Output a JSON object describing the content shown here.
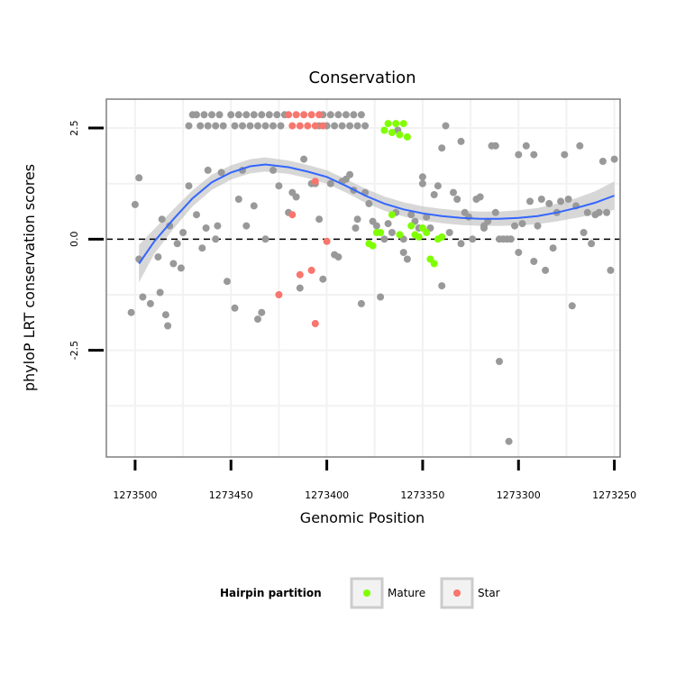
{
  "chart_data": {
    "type": "scatter",
    "title": "Conservation",
    "xlabel": "Genomic Position",
    "ylabel": "phyloP LRT conservation scores",
    "xlim": [
      1273515,
      1273247
    ],
    "ylim": [
      -4.9,
      3.15
    ],
    "x_reversed": true,
    "x_ticks": [
      1273500,
      1273450,
      1273400,
      1273350,
      1273300,
      1273250
    ],
    "x_tick_labels": [
      "1273500",
      "1273450",
      "1273400",
      "1273350",
      "1273300",
      "1273250"
    ],
    "y_ticks": [
      -2.5,
      0.0,
      2.5
    ],
    "y_tick_labels": [
      "-2.5",
      "0.0",
      "2.5"
    ],
    "minor_y": [
      -3.75,
      -1.25,
      1.25
    ],
    "minor_x": [
      1273475,
      1273425,
      1273375,
      1273325,
      1273275
    ],
    "reference_line": {
      "y": 0,
      "style": "dashed",
      "color": "#000000"
    },
    "colors": {
      "none": "#999999",
      "Mature": "#7fff00",
      "Star": "#f8766d",
      "smooth": "#3366ff",
      "ribbon": "#bdbdbd",
      "panel_border": "#7f7f7f",
      "grid": "#f2f2f2"
    },
    "legend": {
      "title": "Hairpin partition",
      "position": "bottom",
      "entries": [
        {
          "label": "Mature",
          "color": "#7fff00"
        },
        {
          "label": "Star",
          "color": "#f8766d"
        }
      ]
    },
    "series": [
      {
        "name": "none",
        "points": [
          [
            1273498,
            1.38
          ],
          [
            1273500,
            0.78
          ],
          [
            1273496,
            -1.3
          ],
          [
            1273498,
            -0.45
          ],
          [
            1273492,
            -1.45
          ],
          [
            1273502,
            -1.65
          ],
          [
            1273488,
            -0.4
          ],
          [
            1273486,
            0.45
          ],
          [
            1273487,
            -1.2
          ],
          [
            1273484,
            -1.7
          ],
          [
            1273483,
            -1.95
          ],
          [
            1273482,
            0.3
          ],
          [
            1273480,
            -0.55
          ],
          [
            1273478,
            -0.1
          ],
          [
            1273476,
            -0.65
          ],
          [
            1273475,
            0.15
          ],
          [
            1273472,
            1.2
          ],
          [
            1273468,
            0.55
          ],
          [
            1273465,
            -0.2
          ],
          [
            1273463,
            0.25
          ],
          [
            1273462,
            1.55
          ],
          [
            1273458,
            0.0
          ],
          [
            1273457,
            0.3
          ],
          [
            1273455,
            1.5
          ],
          [
            1273452,
            -0.95
          ],
          [
            1273448,
            -1.55
          ],
          [
            1273446,
            0.9
          ],
          [
            1273444,
            1.55
          ],
          [
            1273442,
            0.3
          ],
          [
            1273438,
            0.75
          ],
          [
            1273436,
            -1.8
          ],
          [
            1273434,
            -1.65
          ],
          [
            1273432,
            0.0
          ],
          [
            1273428,
            1.55
          ],
          [
            1273425,
            1.2
          ],
          [
            1273420,
            0.6
          ],
          [
            1273418,
            1.05
          ],
          [
            1273416,
            0.95
          ],
          [
            1273414,
            -1.1
          ],
          [
            1273412,
            1.8
          ],
          [
            1273408,
            1.25
          ],
          [
            1273406,
            1.25
          ],
          [
            1273404,
            0.45
          ],
          [
            1273402,
            -0.9
          ],
          [
            1273398,
            1.25
          ],
          [
            1273396,
            -0.35
          ],
          [
            1273394,
            -0.4
          ],
          [
            1273392,
            1.3
          ],
          [
            1273390,
            1.35
          ],
          [
            1273388,
            1.45
          ],
          [
            1273386,
            1.1
          ],
          [
            1273385,
            0.25
          ],
          [
            1273384,
            0.45
          ],
          [
            1273382,
            -1.45
          ],
          [
            1273380,
            1.05
          ],
          [
            1273378,
            0.8
          ],
          [
            1273376,
            0.4
          ],
          [
            1273374,
            0.3
          ],
          [
            1273372,
            -1.3
          ],
          [
            1273370,
            0.0
          ],
          [
            1273368,
            0.35
          ],
          [
            1273366,
            0.15
          ],
          [
            1273364,
            0.6
          ],
          [
            1273363,
            2.45
          ],
          [
            1273360,
            0.0
          ],
          [
            1273358,
            -0.45
          ],
          [
            1273356,
            0.55
          ],
          [
            1273354,
            0.4
          ],
          [
            1273352,
            0.25
          ],
          [
            1273350,
            1.25
          ],
          [
            1273348,
            0.5
          ],
          [
            1273346,
            0.25
          ],
          [
            1273344,
            1.0
          ],
          [
            1273342,
            1.2
          ],
          [
            1273340,
            -1.05
          ],
          [
            1273338,
            2.55
          ],
          [
            1273336,
            0.15
          ],
          [
            1273334,
            1.05
          ],
          [
            1273332,
            0.9
          ],
          [
            1273330,
            2.2
          ],
          [
            1273328,
            0.6
          ],
          [
            1273326,
            0.5
          ],
          [
            1273324,
            0.0
          ],
          [
            1273322,
            0.9
          ],
          [
            1273320,
            0.95
          ],
          [
            1273318,
            0.25
          ],
          [
            1273316,
            0.4
          ],
          [
            1273314,
            2.1
          ],
          [
            1273312,
            2.1
          ],
          [
            1273310,
            0.0
          ],
          [
            1273308,
            0.0
          ],
          [
            1273306,
            0.0
          ],
          [
            1273304,
            0.0
          ],
          [
            1273302,
            0.3
          ],
          [
            1273300,
            -0.3
          ],
          [
            1273298,
            0.35
          ],
          [
            1273296,
            2.1
          ],
          [
            1273294,
            0.85
          ],
          [
            1273292,
            -0.5
          ],
          [
            1273290,
            0.3
          ],
          [
            1273288,
            0.9
          ],
          [
            1273286,
            -0.7
          ],
          [
            1273284,
            0.8
          ],
          [
            1273282,
            -0.2
          ],
          [
            1273280,
            0.6
          ],
          [
            1273278,
            0.85
          ],
          [
            1273276,
            1.9
          ],
          [
            1273274,
            0.9
          ],
          [
            1273272,
            -1.5
          ],
          [
            1273270,
            0.75
          ],
          [
            1273268,
            2.1
          ],
          [
            1273266,
            0.15
          ],
          [
            1273264,
            0.6
          ],
          [
            1273262,
            -0.1
          ],
          [
            1273260,
            0.55
          ],
          [
            1273258,
            0.6
          ],
          [
            1273256,
            1.75
          ],
          [
            1273254,
            0.6
          ],
          [
            1273252,
            -0.7
          ],
          [
            1273250,
            1.8
          ],
          [
            1273310,
            -2.75
          ],
          [
            1273305,
            -4.55
          ],
          [
            1273318,
            0.3
          ],
          [
            1273300,
            1.9
          ],
          [
            1273292,
            1.9
          ],
          [
            1273340,
            2.05
          ],
          [
            1273350,
            1.4
          ],
          [
            1273360,
            -0.3
          ],
          [
            1273330,
            -0.1
          ],
          [
            1273312,
            0.6
          ],
          [
            1273470,
            2.8
          ],
          [
            1273472,
            2.55
          ],
          [
            1273468,
            2.8
          ],
          [
            1273466,
            2.55
          ],
          [
            1273464,
            2.8
          ],
          [
            1273462,
            2.55
          ],
          [
            1273460,
            2.8
          ],
          [
            1273458,
            2.55
          ],
          [
            1273456,
            2.8
          ],
          [
            1273454,
            2.55
          ],
          [
            1273450,
            2.8
          ],
          [
            1273448,
            2.55
          ],
          [
            1273446,
            2.8
          ],
          [
            1273444,
            2.55
          ],
          [
            1273442,
            2.8
          ],
          [
            1273440,
            2.55
          ],
          [
            1273438,
            2.8
          ],
          [
            1273436,
            2.55
          ],
          [
            1273434,
            2.8
          ],
          [
            1273432,
            2.55
          ],
          [
            1273430,
            2.8
          ],
          [
            1273428,
            2.55
          ],
          [
            1273426,
            2.8
          ],
          [
            1273424,
            2.55
          ],
          [
            1273422,
            2.8
          ],
          [
            1273404,
            2.55
          ],
          [
            1273402,
            2.8
          ],
          [
            1273400,
            2.55
          ],
          [
            1273398,
            2.8
          ],
          [
            1273396,
            2.55
          ],
          [
            1273394,
            2.8
          ],
          [
            1273392,
            2.55
          ],
          [
            1273390,
            2.8
          ],
          [
            1273388,
            2.55
          ],
          [
            1273386,
            2.8
          ],
          [
            1273384,
            2.55
          ],
          [
            1273382,
            2.8
          ],
          [
            1273380,
            2.55
          ]
        ]
      },
      {
        "name": "Mature",
        "points": [
          [
            1273370,
            2.45
          ],
          [
            1273368,
            2.6
          ],
          [
            1273366,
            2.4
          ],
          [
            1273364,
            2.6
          ],
          [
            1273362,
            2.35
          ],
          [
            1273360,
            2.6
          ],
          [
            1273358,
            2.3
          ],
          [
            1273356,
            0.3
          ],
          [
            1273354,
            0.1
          ],
          [
            1273352,
            0.05
          ],
          [
            1273350,
            0.25
          ],
          [
            1273348,
            0.15
          ],
          [
            1273346,
            -0.45
          ],
          [
            1273344,
            -0.55
          ],
          [
            1273342,
            0.0
          ],
          [
            1273340,
            0.05
          ],
          [
            1273372,
            0.15
          ],
          [
            1273374,
            0.15
          ],
          [
            1273376,
            -0.15
          ],
          [
            1273378,
            -0.1
          ],
          [
            1273366,
            0.55
          ],
          [
            1273362,
            0.1
          ]
        ]
      },
      {
        "name": "Star",
        "points": [
          [
            1273420,
            2.8
          ],
          [
            1273418,
            2.55
          ],
          [
            1273416,
            2.8
          ],
          [
            1273414,
            2.55
          ],
          [
            1273412,
            2.8
          ],
          [
            1273410,
            2.55
          ],
          [
            1273408,
            2.8
          ],
          [
            1273406,
            2.55
          ],
          [
            1273404,
            2.8
          ],
          [
            1273402,
            2.55
          ],
          [
            1273425,
            -1.25
          ],
          [
            1273418,
            0.55
          ],
          [
            1273414,
            -0.8
          ],
          [
            1273408,
            -0.7
          ],
          [
            1273406,
            1.3
          ],
          [
            1273406,
            -1.9
          ],
          [
            1273400,
            -0.05
          ]
        ]
      }
    ],
    "smooth": {
      "method": "loess",
      "x": [
        1273498,
        1273490,
        1273480,
        1273470,
        1273460,
        1273450,
        1273440,
        1273432,
        1273420,
        1273410,
        1273400,
        1273390,
        1273380,
        1273370,
        1273360,
        1273350,
        1273340,
        1273330,
        1273320,
        1273310,
        1273300,
        1273290,
        1273280,
        1273270,
        1273260,
        1273250
      ],
      "y": [
        -0.55,
        -0.05,
        0.45,
        0.92,
        1.28,
        1.5,
        1.64,
        1.68,
        1.62,
        1.52,
        1.4,
        1.2,
        0.98,
        0.8,
        0.67,
        0.58,
        0.52,
        0.48,
        0.46,
        0.46,
        0.48,
        0.52,
        0.6,
        0.7,
        0.82,
        0.98
      ],
      "se": [
        0.42,
        0.28,
        0.22,
        0.18,
        0.17,
        0.16,
        0.16,
        0.16,
        0.15,
        0.15,
        0.15,
        0.15,
        0.16,
        0.16,
        0.16,
        0.16,
        0.16,
        0.16,
        0.16,
        0.16,
        0.17,
        0.18,
        0.2,
        0.22,
        0.26,
        0.32
      ]
    }
  }
}
